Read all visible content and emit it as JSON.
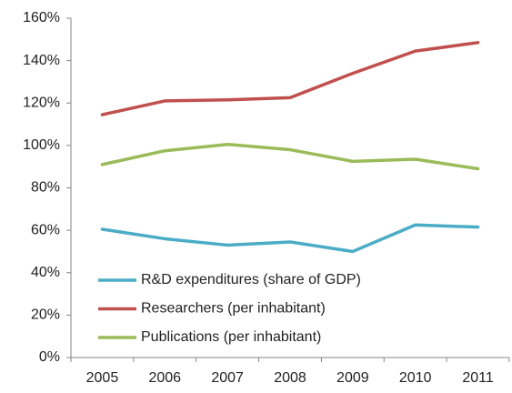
{
  "chart_data": {
    "type": "line",
    "categories": [
      "2005",
      "2006",
      "2007",
      "2008",
      "2009",
      "2010",
      "2011"
    ],
    "series": [
      {
        "name": "R&D expenditures (share of GDP)",
        "color": "#4bacc6",
        "values": [
          60.5,
          56,
          53,
          54.5,
          50,
          62.5,
          61.5
        ]
      },
      {
        "name": "Researchers (per inhabitant)",
        "color": "#c0504d",
        "values": [
          114.5,
          121,
          121.5,
          122.5,
          134,
          144.5,
          148.5
        ]
      },
      {
        "name": "Publications (per inhabitant)",
        "color": "#9bbb59",
        "values": [
          91,
          97.5,
          100.5,
          98,
          92.5,
          93.5,
          89
        ]
      }
    ],
    "ylim": [
      0,
      160
    ],
    "yticks": [
      {
        "value": 0,
        "label": "0%"
      },
      {
        "value": 20,
        "label": "20%"
      },
      {
        "value": 40,
        "label": "40%"
      },
      {
        "value": 60,
        "label": "60%"
      },
      {
        "value": 80,
        "label": "80%"
      },
      {
        "value": 100,
        "label": "100%"
      },
      {
        "value": 120,
        "label": "120%"
      },
      {
        "value": 140,
        "label": "140%"
      },
      {
        "value": 160,
        "label": "160%"
      }
    ],
    "grid": false,
    "legend": "lower left"
  }
}
